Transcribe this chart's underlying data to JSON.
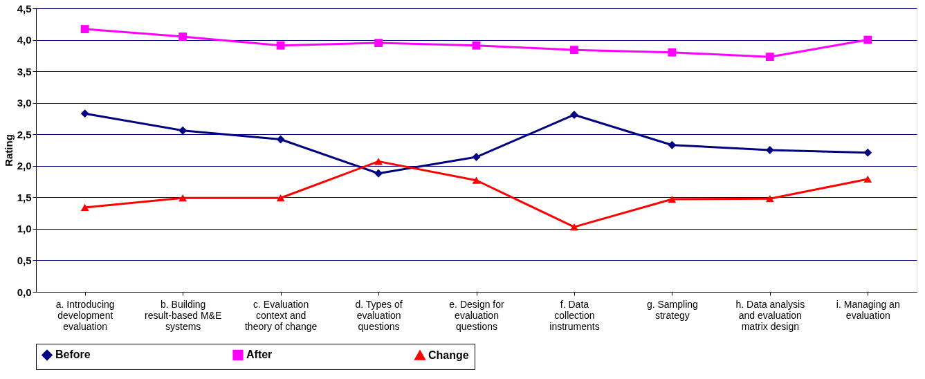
{
  "chart_data": {
    "type": "line",
    "ylabel": "Rating",
    "categories": [
      "a. Introducing development evaluation",
      "b. Building result-based M&E systems",
      "c. Evaluation context and theory of change",
      "d. Types of evaluation questions",
      "e. Design for evaluation questions",
      "f. Data collection instruments",
      "g. Sampling strategy",
      "h. Data analysis and evaluation matrix design",
      "i. Managing an evaluation"
    ],
    "series": [
      {
        "name": "Before",
        "color": "#000080",
        "marker": "diamond",
        "values": [
          2.83,
          2.56,
          2.42,
          1.88,
          2.14,
          2.81,
          2.33,
          2.25,
          2.21
        ]
      },
      {
        "name": "After",
        "color": "#ff00ff",
        "marker": "square",
        "values": [
          4.17,
          4.05,
          3.91,
          3.95,
          3.91,
          3.84,
          3.8,
          3.73,
          4.0
        ]
      },
      {
        "name": "Change",
        "color": "#ff0000",
        "marker": "triangle",
        "values": [
          1.34,
          1.49,
          1.49,
          2.07,
          1.77,
          1.03,
          1.47,
          1.48,
          1.79
        ]
      }
    ],
    "ylim": [
      0,
      4.5
    ],
    "yticks": [
      {
        "value": 0,
        "label": "0,0"
      },
      {
        "value": 0.5,
        "label": "0,5"
      },
      {
        "value": 1,
        "label": "1,0"
      },
      {
        "value": 1.5,
        "label": "1,5"
      },
      {
        "value": 2,
        "label": "2,0"
      },
      {
        "value": 2.5,
        "label": "2,5"
      },
      {
        "value": 3,
        "label": "3,0"
      },
      {
        "value": 3.5,
        "label": "3,5"
      },
      {
        "value": 4,
        "label": "4,0"
      },
      {
        "value": 4.5,
        "label": "4,5"
      }
    ],
    "grid": "y",
    "legend": "bottom",
    "line_style": "solid"
  }
}
